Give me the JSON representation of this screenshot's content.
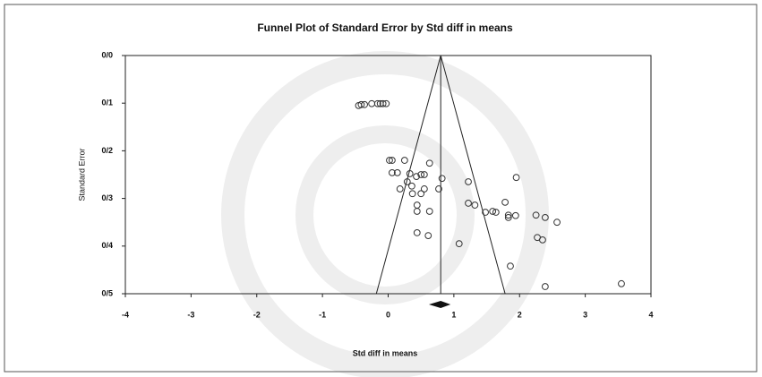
{
  "chart_data": {
    "type": "funnel",
    "title": "Funnel Plot of Standard Error by Std diff in means",
    "x_label": "Std diff in means",
    "y_label": "Standard Error",
    "xlim": [
      -4,
      4
    ],
    "xticks": [
      -4,
      -3,
      -2,
      -1,
      0,
      1,
      2,
      3,
      4
    ],
    "ylim": [
      0,
      0.5
    ],
    "y_inverted": true,
    "yticks": [
      {
        "value": 0,
        "label": "0/0"
      },
      {
        "value": 0.1,
        "label": "0/1"
      },
      {
        "value": 0.2,
        "label": "0/2"
      },
      {
        "value": 0.3,
        "label": "0/3"
      },
      {
        "value": 0.4,
        "label": "0/4"
      },
      {
        "value": 0.5,
        "label": "0/5"
      }
    ],
    "summary": {
      "estimate": 0.8,
      "lower": 0.62,
      "upper": 0.95
    },
    "color": "#333333",
    "x": [
      -0.45,
      -0.41,
      -0.36,
      -0.25,
      -0.16,
      -0.12,
      -0.08,
      -0.03,
      0.02,
      0.06,
      0.06,
      0.14,
      0.25,
      0.18,
      0.33,
      0.29,
      0.36,
      0.43,
      0.5,
      0.55,
      0.63,
      0.37,
      0.5,
      0.55,
      0.77,
      0.82,
      0.44,
      0.44,
      0.63,
      0.44,
      0.61,
      1.08,
      1.22,
      1.22,
      1.32,
      1.48,
      1.59,
      1.64,
      1.78,
      1.83,
      1.83,
      1.94,
      1.95,
      2.25,
      2.39,
      2.57,
      2.27,
      2.35,
      1.86,
      2.39,
      3.55
    ],
    "values": [
      0.105,
      0.103,
      0.103,
      0.101,
      0.101,
      0.101,
      0.101,
      0.101,
      0.22,
      0.22,
      0.246,
      0.246,
      0.22,
      0.28,
      0.248,
      0.265,
      0.274,
      0.254,
      0.25,
      0.25,
      0.226,
      0.29,
      0.29,
      0.28,
      0.28,
      0.258,
      0.314,
      0.327,
      0.327,
      0.372,
      0.378,
      0.395,
      0.265,
      0.31,
      0.314,
      0.329,
      0.327,
      0.329,
      0.308,
      0.335,
      0.34,
      0.336,
      0.256,
      0.335,
      0.34,
      0.35,
      0.382,
      0.387,
      0.442,
      0.485,
      0.479
    ]
  }
}
